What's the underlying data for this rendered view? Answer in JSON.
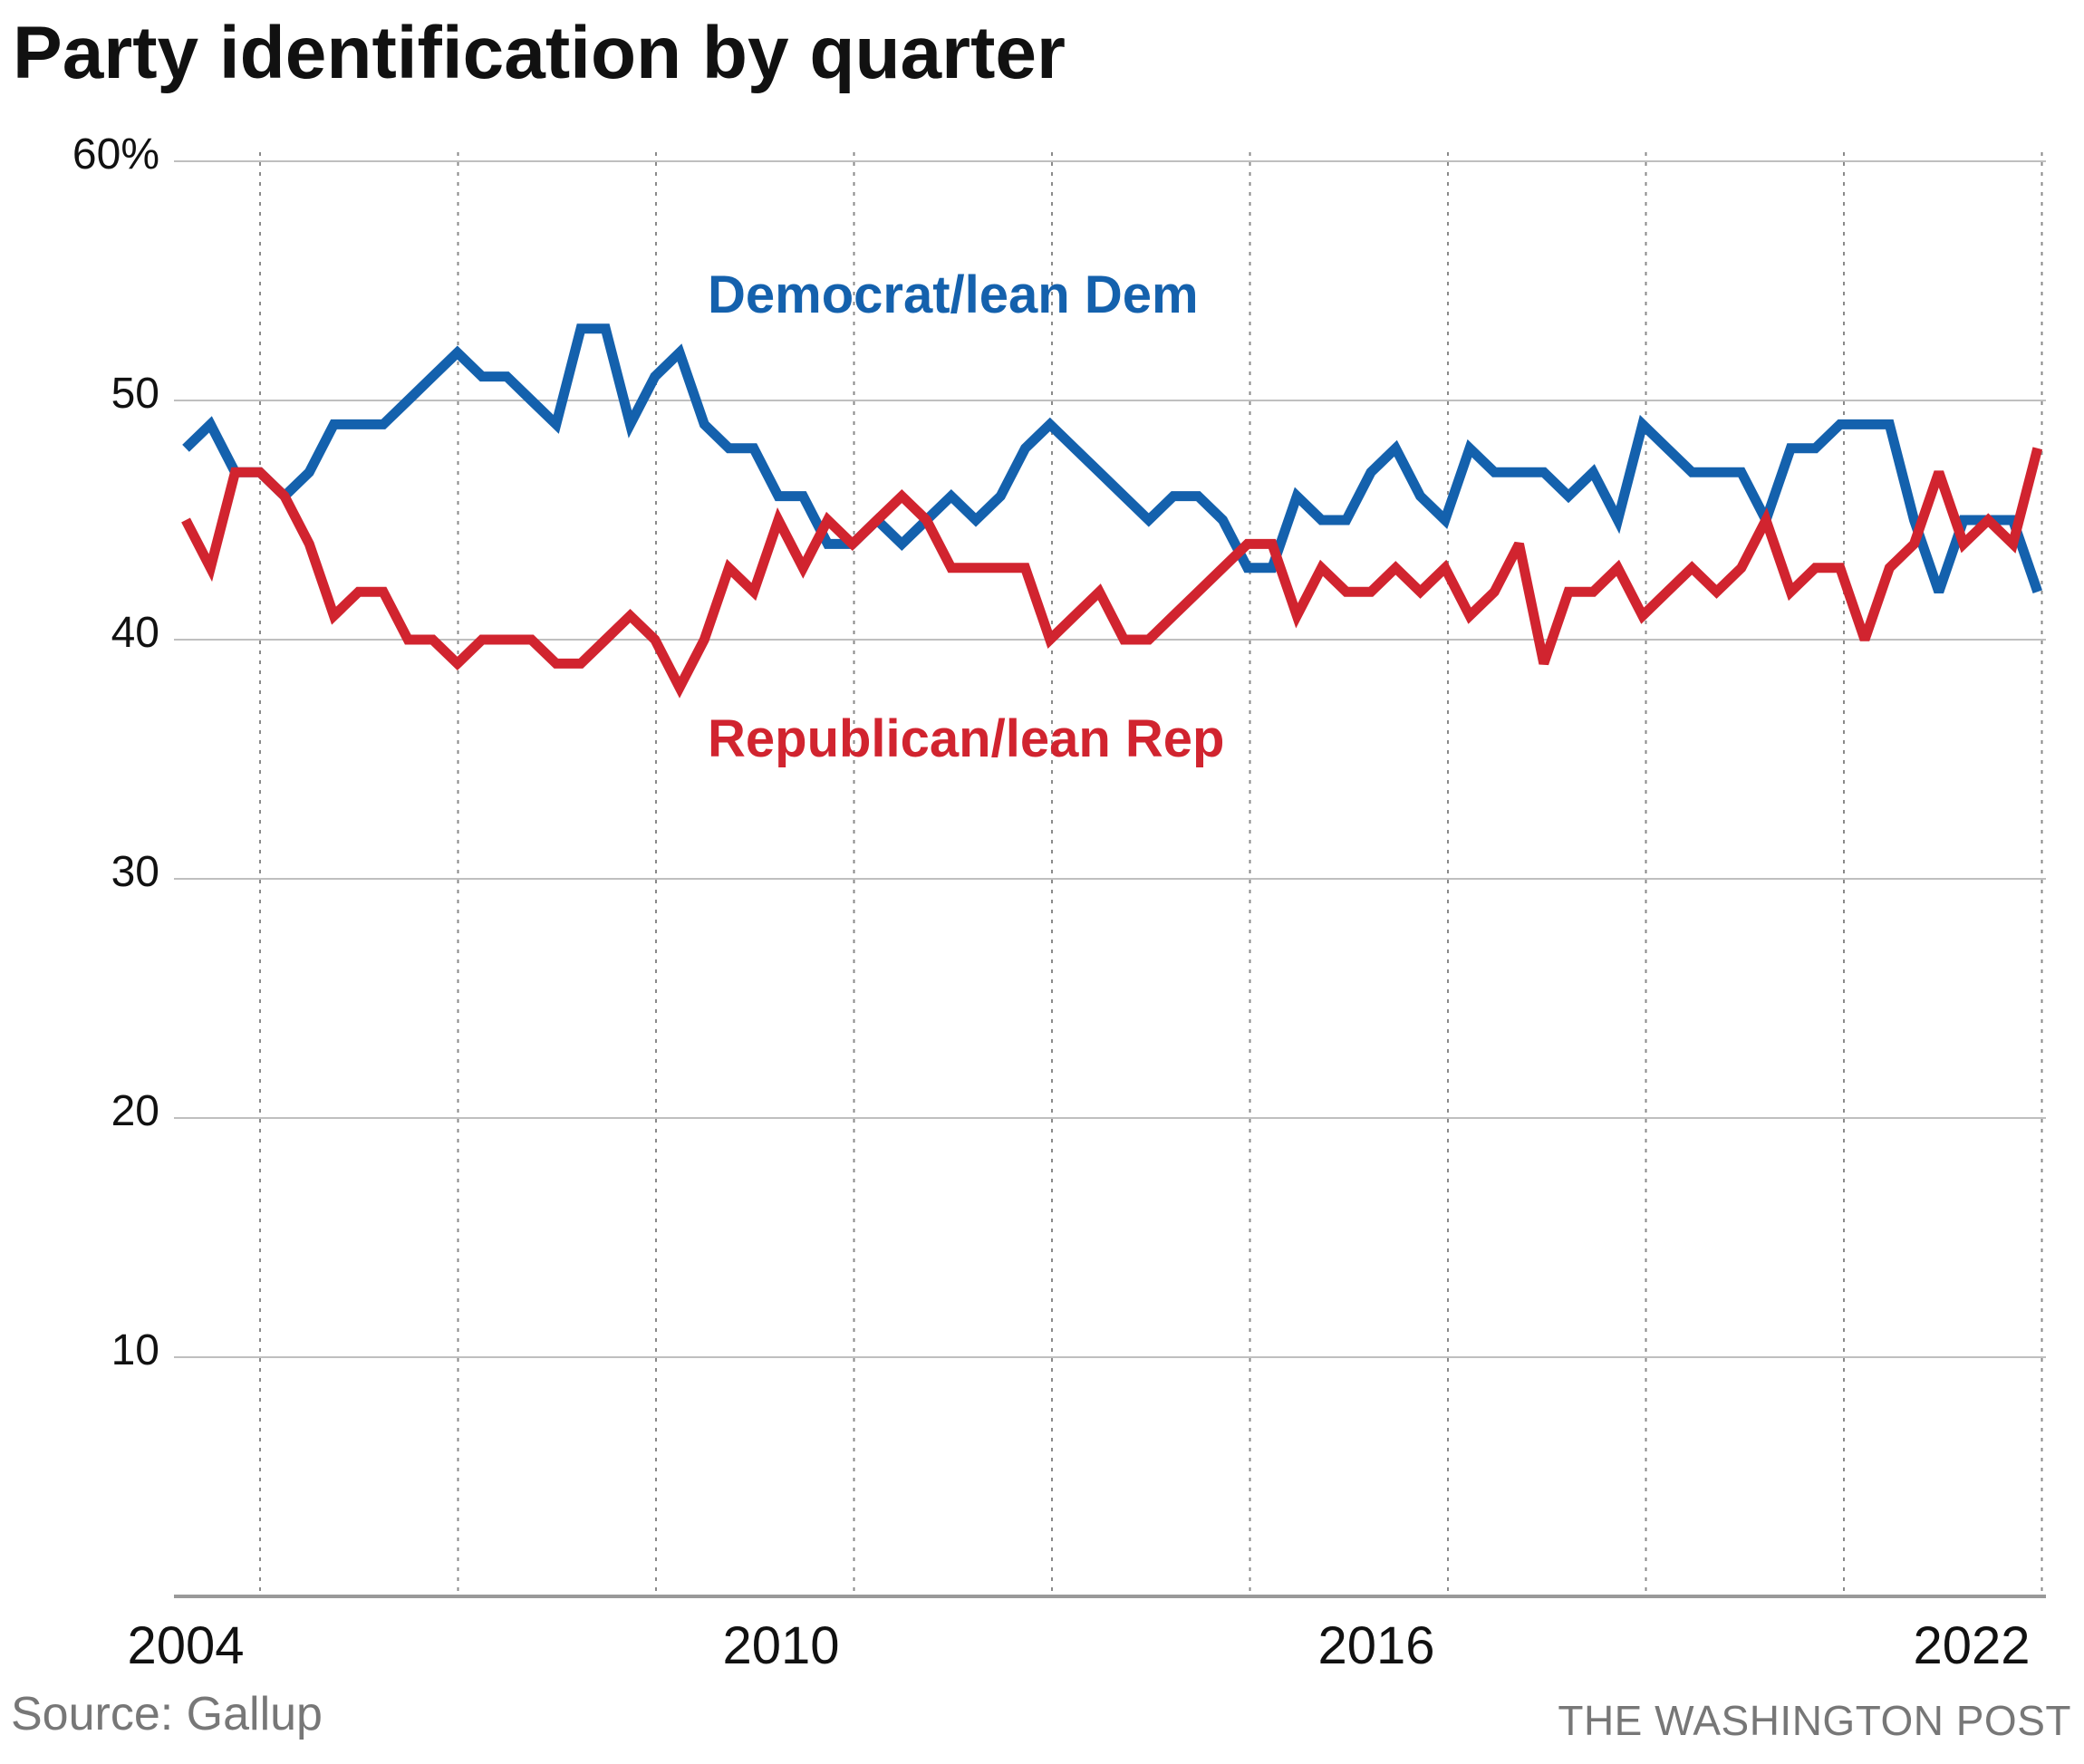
{
  "title": "Party identification by quarter",
  "source": "Source: Gallup",
  "credit": "THE WASHINGTON POST",
  "colors": {
    "dem": "#1461ad",
    "rep": "#d1242f",
    "grid": "#bfbfbf",
    "axis": "#999999",
    "text": "#111111"
  },
  "chart_data": {
    "type": "line",
    "title": "Party identification by quarter",
    "x_tick_labels": [
      "2004",
      "2010",
      "2016",
      "2022"
    ],
    "y_tick_labels": [
      "60%",
      "50",
      "40",
      "30",
      "20",
      "10"
    ],
    "y_ticks": [
      60,
      50,
      40,
      30,
      20,
      10
    ],
    "ylim": [
      0,
      60
    ],
    "xlim": [
      2004,
      2023
    ],
    "grid": {
      "horizontal": "solid",
      "vertical": "dotted"
    },
    "legend": "inline labels",
    "series": [
      {
        "name": "Democrat/lean Dem",
        "label": "Democrat/lean Dem",
        "color": "#1461ad",
        "x": [
          2004.0,
          2004.25,
          2004.5,
          2004.75,
          2005.0,
          2005.25,
          2005.5,
          2005.75,
          2006.0,
          2006.25,
          2006.5,
          2006.75,
          2007.0,
          2007.25,
          2007.5,
          2007.75,
          2008.0,
          2008.25,
          2008.5,
          2008.75,
          2009.0,
          2009.25,
          2009.5,
          2009.75,
          2010.0,
          2010.25,
          2010.5,
          2010.75,
          2011.0,
          2011.25,
          2011.5,
          2011.75,
          2012.0,
          2012.25,
          2012.5,
          2012.75,
          2013.0,
          2013.25,
          2013.5,
          2013.75,
          2014.0,
          2014.25,
          2014.5,
          2014.75,
          2015.0,
          2015.25,
          2015.5,
          2015.75,
          2016.0,
          2016.25,
          2016.5,
          2016.75,
          2017.0,
          2017.25,
          2017.5,
          2017.75,
          2018.0,
          2018.25,
          2018.5,
          2018.75,
          2019.0,
          2019.25,
          2019.5,
          2019.75,
          2020.0,
          2020.25,
          2020.5,
          2020.75,
          2021.0,
          2021.25,
          2021.5,
          2021.75,
          2022.0,
          2022.25,
          2022.5,
          2022.75
        ],
        "y": [
          48,
          49,
          47,
          47,
          46,
          47,
          49,
          49,
          49,
          50,
          51,
          52,
          51,
          51,
          50,
          49,
          53,
          53,
          49,
          51,
          52,
          49,
          48,
          48,
          46,
          46,
          44,
          44,
          45,
          44,
          45,
          46,
          45,
          46,
          48,
          49,
          48,
          47,
          46,
          45,
          46,
          46,
          45,
          43,
          43,
          46,
          45,
          45,
          47,
          48,
          46,
          45,
          48,
          47,
          47,
          47,
          46,
          47,
          45,
          49,
          48,
          47,
          47,
          47,
          45,
          48,
          48,
          49,
          49,
          49,
          45,
          42,
          45,
          45,
          45,
          42
        ]
      },
      {
        "name": "Republican/lean Rep",
        "label": "Republican/lean Rep",
        "color": "#d1242f",
        "x": [
          2004.0,
          2004.25,
          2004.5,
          2004.75,
          2005.0,
          2005.25,
          2005.5,
          2005.75,
          2006.0,
          2006.25,
          2006.5,
          2006.75,
          2007.0,
          2007.25,
          2007.5,
          2007.75,
          2008.0,
          2008.25,
          2008.5,
          2008.75,
          2009.0,
          2009.25,
          2009.5,
          2009.75,
          2010.0,
          2010.25,
          2010.5,
          2010.75,
          2011.0,
          2011.25,
          2011.5,
          2011.75,
          2012.0,
          2012.25,
          2012.5,
          2012.75,
          2013.0,
          2013.25,
          2013.5,
          2013.75,
          2014.0,
          2014.25,
          2014.5,
          2014.75,
          2015.0,
          2015.25,
          2015.5,
          2015.75,
          2016.0,
          2016.25,
          2016.5,
          2016.75,
          2017.0,
          2017.25,
          2017.5,
          2017.75,
          2018.0,
          2018.25,
          2018.5,
          2018.75,
          2019.0,
          2019.25,
          2019.5,
          2019.75,
          2020.0,
          2020.25,
          2020.5,
          2020.75,
          2021.0,
          2021.25,
          2021.5,
          2021.75,
          2022.0,
          2022.25,
          2022.5,
          2022.75
        ],
        "y": [
          45,
          43,
          47,
          47,
          46,
          44,
          41,
          42,
          42,
          40,
          40,
          39,
          40,
          40,
          40,
          39,
          39,
          40,
          41,
          40,
          38,
          40,
          43,
          42,
          45,
          43,
          45,
          44,
          45,
          46,
          45,
          43,
          43,
          43,
          43,
          40,
          41,
          42,
          40,
          40,
          41,
          42,
          43,
          44,
          44,
          41,
          43,
          42,
          42,
          43,
          42,
          43,
          41,
          42,
          44,
          39,
          42,
          42,
          43,
          41,
          42,
          43,
          42,
          43,
          45,
          42,
          43,
          43,
          40,
          43,
          44,
          47,
          44,
          45,
          44,
          48
        ]
      }
    ]
  }
}
